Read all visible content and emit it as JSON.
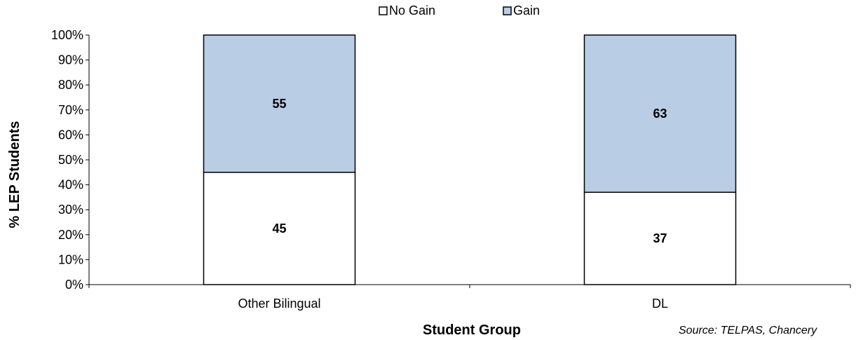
{
  "chart_data": {
    "type": "bar",
    "stacked": true,
    "categories": [
      "Other Bilingual",
      "DL"
    ],
    "series": [
      {
        "name": "No Gain",
        "values": [
          45,
          37
        ],
        "color": "#ffffff"
      },
      {
        "name": "Gain",
        "values": [
          55,
          63
        ],
        "color": "#b9cde5"
      }
    ],
    "xlabel": "Student Group",
    "ylabel": "% LEP Students",
    "ylim": [
      0,
      100
    ],
    "yticks": [
      "0%",
      "10%",
      "20%",
      "30%",
      "40%",
      "50%",
      "60%",
      "70%",
      "80%",
      "90%",
      "100%"
    ],
    "legend_position": "top-center",
    "grid": false,
    "source": "Source: TELPAS, Chancery"
  }
}
